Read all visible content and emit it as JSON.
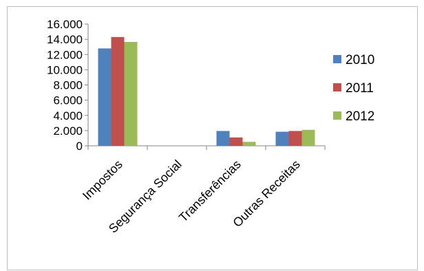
{
  "chart_data": {
    "type": "bar",
    "title": "",
    "xlabel": "",
    "ylabel": "",
    "categories": [
      "Impostos",
      "Segurança Social",
      "Transferências",
      "Outras Receitas"
    ],
    "series": [
      {
        "name": "2010",
        "color": "#4f81bd",
        "values": [
          12800,
          0,
          1950,
          1850
        ]
      },
      {
        "name": "2011",
        "color": "#c0504d",
        "values": [
          14300,
          0,
          1100,
          1950
        ]
      },
      {
        "name": "2012",
        "color": "#9bbb59",
        "values": [
          13650,
          0,
          520,
          2100
        ]
      }
    ],
    "ylim": [
      0,
      16000
    ],
    "yticks": [
      0,
      2000,
      4000,
      6000,
      8000,
      10000,
      12000,
      14000,
      16000
    ],
    "ytick_labels": [
      "0",
      "2.000",
      "4.000",
      "6.000",
      "8.000",
      "10.000",
      "12.000",
      "14.000",
      "16.000"
    ],
    "grid": false,
    "legend_position": "right"
  }
}
